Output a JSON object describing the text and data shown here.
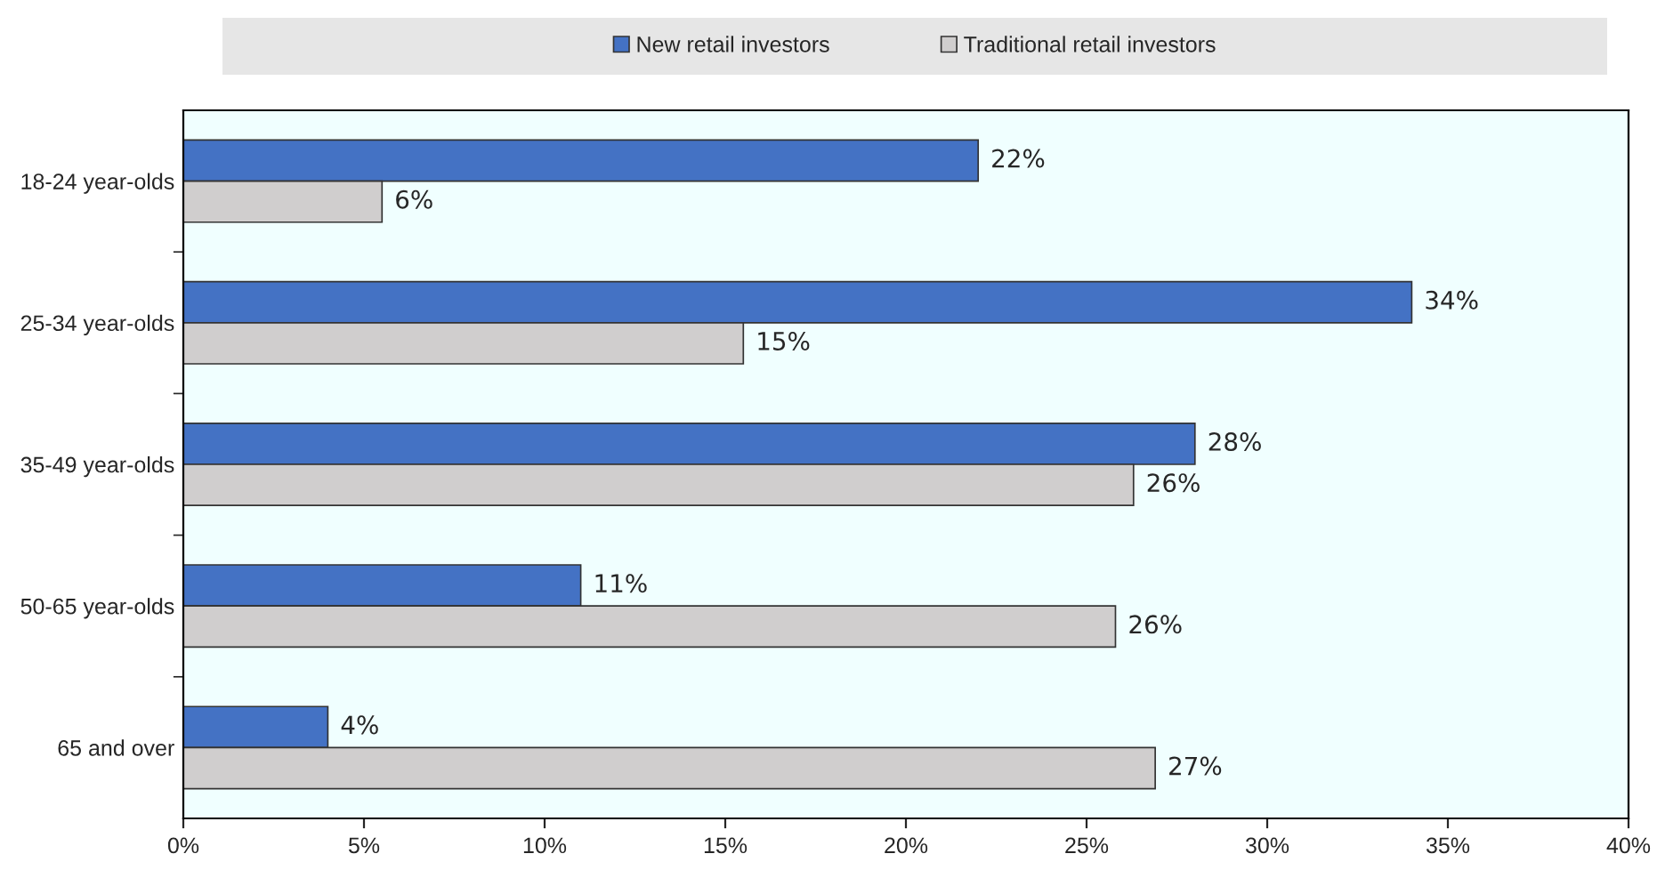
{
  "chart_data": {
    "type": "bar",
    "orientation": "horizontal",
    "categories": [
      "18-24 year-olds",
      "25-34 year-olds",
      "35-49 year-olds",
      "50-65 year-olds",
      "65 and over"
    ],
    "series": [
      {
        "name": "New retail investors",
        "color": "#4472c4",
        "values": [
          22,
          34,
          28,
          11,
          4
        ],
        "value_labels": [
          "22%",
          "34%",
          "28%",
          "11%",
          "4%"
        ]
      },
      {
        "name": "Traditional retail investors",
        "color": "#d0cece",
        "values": [
          5.5,
          15.5,
          26.3,
          25.8,
          26.9
        ],
        "value_labels": [
          "6%",
          "15%",
          "26%",
          "26%",
          "27%"
        ]
      }
    ],
    "xlim": [
      0,
      40
    ],
    "xticks": [
      {
        "value": 0,
        "label": "0%"
      },
      {
        "value": 5,
        "label": "5%"
      },
      {
        "value": 10,
        "label": "10%"
      },
      {
        "value": 15,
        "label": "15%"
      },
      {
        "value": 20,
        "label": "20%"
      },
      {
        "value": 25,
        "label": "25%"
      },
      {
        "value": 30,
        "label": "30%"
      },
      {
        "value": 35,
        "label": "35%"
      },
      {
        "value": 40,
        "label": "40%"
      }
    ],
    "grid": false,
    "legend": "top"
  }
}
